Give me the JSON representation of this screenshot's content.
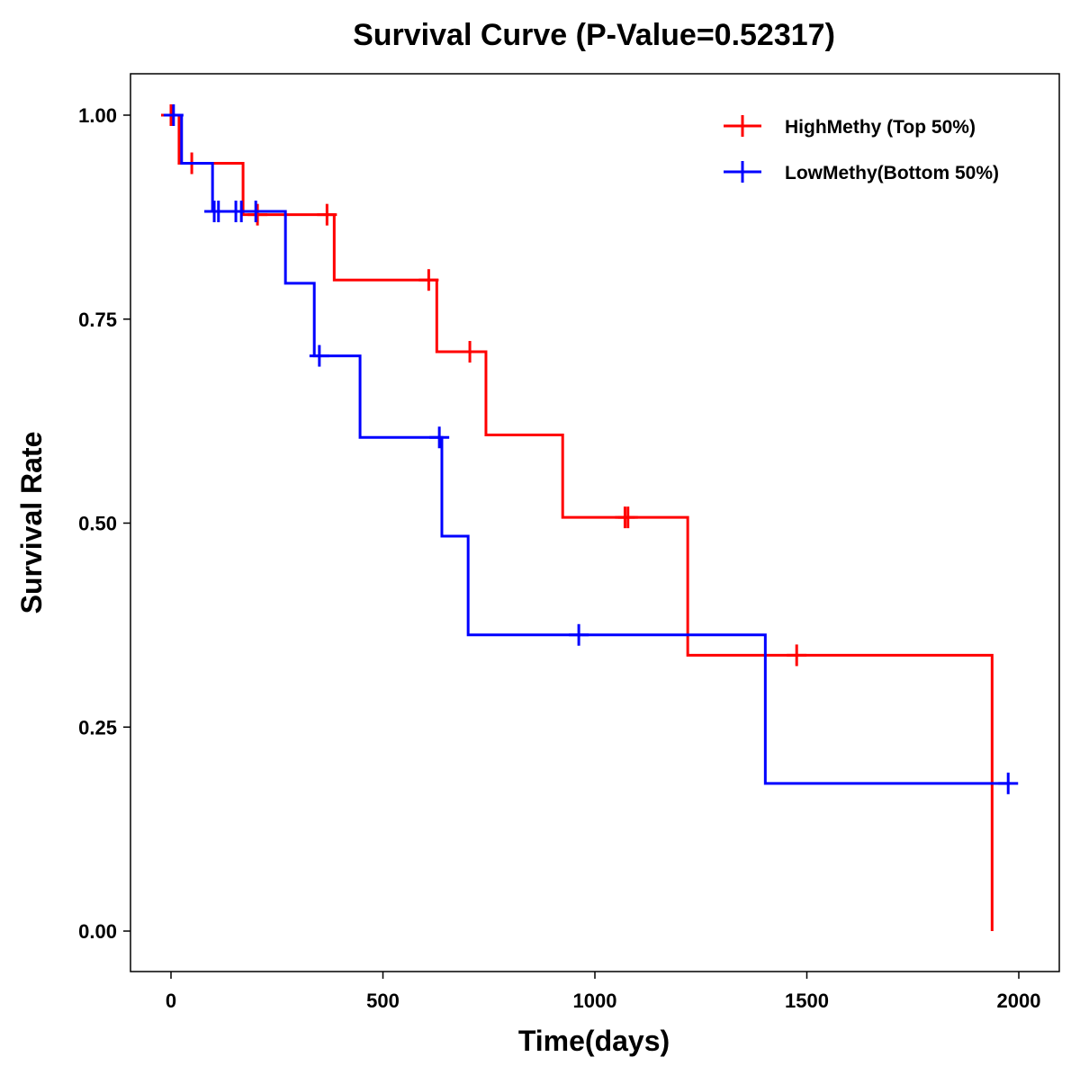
{
  "chart_data": {
    "type": "line",
    "subtype": "kaplan-meier step",
    "title": "Survival Curve (P-Value=0.52317)",
    "xlabel": "Time(days)",
    "ylabel": "Survival Rate",
    "xlim": [
      -95,
      2095
    ],
    "ylim": [
      -0.05,
      1.05
    ],
    "xticks": [
      0,
      500,
      1000,
      1500,
      2000
    ],
    "xtick_labels": [
      "0",
      "500",
      "1000",
      "1500",
      "2000"
    ],
    "yticks": [
      0,
      0.25,
      0.5,
      0.75,
      1
    ],
    "ytick_labels": [
      "0.00",
      "0.25",
      "0.50",
      "0.75",
      "1.00"
    ],
    "grid": false,
    "legend_position": "top-right",
    "series": [
      {
        "name": "HighMethy (Top 50%)",
        "color": "#ff0000",
        "drops": [
          [
            19,
            0.941
          ],
          [
            170,
            0.878
          ],
          [
            385,
            0.798
          ],
          [
            627,
            0.71
          ],
          [
            743,
            0.608
          ],
          [
            924,
            0.507
          ],
          [
            1219,
            0.338
          ],
          [
            1937,
            0
          ]
        ],
        "end_time": 1937,
        "censored": [
          [
            0,
            1
          ],
          [
            49,
            0.941
          ],
          [
            204,
            0.878
          ],
          [
            368,
            0.878
          ],
          [
            608,
            0.798
          ],
          [
            705,
            0.71
          ],
          [
            1071,
            0.507
          ],
          [
            1078,
            0.507
          ],
          [
            1476,
            0.338
          ]
        ]
      },
      {
        "name": "LowMethy(Bottom 50%)",
        "color": "#0000ff",
        "drops": [
          [
            25,
            0.941
          ],
          [
            98,
            0.882
          ],
          [
            270,
            0.794
          ],
          [
            338,
            0.705
          ],
          [
            446,
            0.605
          ],
          [
            639,
            0.484
          ],
          [
            701,
            0.363
          ],
          [
            1402,
            0.181
          ]
        ],
        "end_time": 1980,
        "censored": [
          [
            6,
            1
          ],
          [
            102,
            0.882
          ],
          [
            112,
            0.882
          ],
          [
            153,
            0.882
          ],
          [
            166,
            0.882
          ],
          [
            200,
            0.882
          ],
          [
            350,
            0.705
          ],
          [
            633,
            0.605
          ],
          [
            962,
            0.363
          ],
          [
            1975,
            0.181
          ]
        ]
      }
    ]
  }
}
